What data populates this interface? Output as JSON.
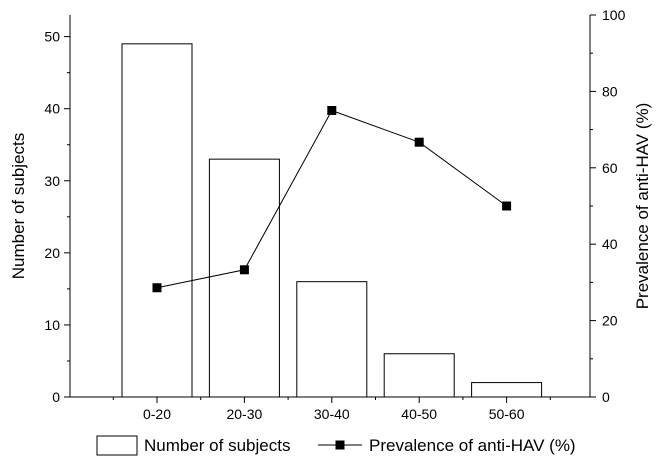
{
  "chart_data": {
    "type": "bar",
    "categories": [
      "0-20",
      "20-30",
      "30-40",
      "40-50",
      "50-60"
    ],
    "series": [
      {
        "name": "Number of subjects",
        "type": "bar",
        "axis": "left",
        "values": [
          49,
          33,
          16,
          6,
          2
        ],
        "color": "#ffffff",
        "stroke": "#000000"
      },
      {
        "name": "Prevalence of anti-HAV (%)",
        "type": "line",
        "axis": "right",
        "marker": "square",
        "values": [
          28.6,
          33.3,
          75,
          66.7,
          50
        ],
        "color": "#000000"
      }
    ],
    "ylabel_left": "Number of subjects",
    "ylabel_right": "Prevalence of anti-HAV (%)",
    "ylim_left": [
      0,
      53
    ],
    "ylim_right": [
      0,
      100
    ],
    "yticks_left": [
      0,
      10,
      20,
      30,
      40,
      50
    ],
    "yticks_right": [
      0,
      20,
      40,
      60,
      80,
      100
    ],
    "grid": false,
    "legend": {
      "position": "bottom",
      "items": [
        "Number of subjects",
        "Prevalence of anti-HAV (%)"
      ]
    }
  }
}
